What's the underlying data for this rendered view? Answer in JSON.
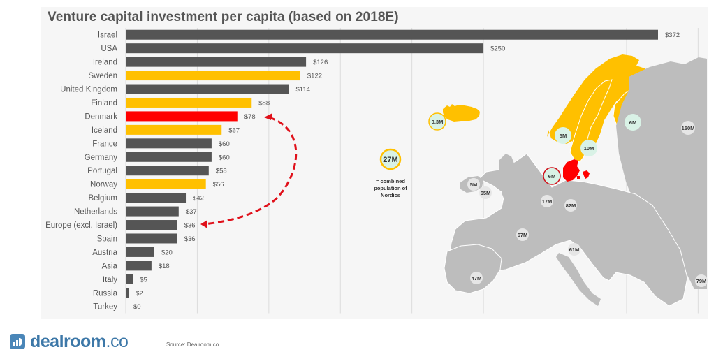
{
  "chart_data": {
    "type": "bar",
    "orientation": "horizontal",
    "title": "Venture capital investment per capita (based on 2018E)",
    "xlabel": "",
    "ylabel": "",
    "xlim": [
      0,
      400
    ],
    "grid": true,
    "grid_interval": 50,
    "value_prefix": "$",
    "categories": [
      "Israel",
      "USA",
      "Ireland",
      "Sweden",
      "United Kingdom",
      "Finland",
      "Denmark",
      "Iceland",
      "France",
      "Germany",
      "Portugal",
      "Norway",
      "Belgium",
      "Netherlands",
      "Europe (excl. Israel)",
      "Spain",
      "Austria",
      "Asia",
      "Italy",
      "Russia",
      "Turkey"
    ],
    "values": [
      372,
      250,
      126,
      122,
      114,
      88,
      78,
      67,
      60,
      60,
      58,
      56,
      42,
      37,
      36,
      36,
      20,
      18,
      5,
      2,
      0
    ],
    "value_labels": [
      "$372",
      "$250",
      "$126",
      "$122",
      "$114",
      "$88",
      "$78",
      "$67",
      "$60",
      "$60",
      "$58",
      "$56",
      "$42",
      "$37",
      "$36",
      "$36",
      "$20",
      "$18",
      "$5",
      "$2",
      "$0"
    ],
    "bar_groups": [
      "other",
      "other",
      "other",
      "nordic",
      "other",
      "nordic",
      "highlight",
      "nordic",
      "other",
      "other",
      "other",
      "nordic",
      "other",
      "other",
      "other",
      "other",
      "other",
      "other",
      "other",
      "other",
      "other"
    ],
    "colors": {
      "other": "#555555",
      "nordic": "#ffc000",
      "highlight": "#ff0000"
    },
    "annotation": {
      "type": "dashed-double-arrow",
      "from": "Denmark",
      "to": "Europe (excl. Israel)",
      "color": "#e0101a"
    }
  },
  "map": {
    "title": "Europe population map",
    "nordic_total": {
      "label": "27M",
      "caption": "= combined population of Nordics"
    },
    "population_labels": [
      {
        "country": "Iceland",
        "label": "0.3M",
        "group": "nordic"
      },
      {
        "country": "Norway",
        "label": "5M",
        "group": "nordic"
      },
      {
        "country": "Sweden",
        "label": "10M",
        "group": "nordic"
      },
      {
        "country": "Finland",
        "label": "6M",
        "group": "nordic"
      },
      {
        "country": "Denmark",
        "label": "6M",
        "group": "highlight"
      },
      {
        "country": "Russia",
        "label": "150M",
        "group": "other"
      },
      {
        "country": "Ireland",
        "label": "5M",
        "group": "other"
      },
      {
        "country": "United Kingdom",
        "label": "65M",
        "group": "other"
      },
      {
        "country": "Netherlands",
        "label": "17M",
        "group": "other"
      },
      {
        "country": "Germany",
        "label": "82M",
        "group": "other"
      },
      {
        "country": "France",
        "label": "67M",
        "group": "other"
      },
      {
        "country": "Italy",
        "label": "61M",
        "group": "other"
      },
      {
        "country": "Spain",
        "label": "47M",
        "group": "other"
      },
      {
        "country": "Turkey",
        "label": "79M",
        "group": "other"
      }
    ],
    "colors": {
      "nordic": "#ffc000",
      "highlight": "#ff0000",
      "other": "#bdbdbd",
      "badge": "#d9f2e6"
    }
  },
  "footer": {
    "logo_word": "dealroom",
    "logo_tld": ".co",
    "source": "Source: Dealroom.co."
  }
}
